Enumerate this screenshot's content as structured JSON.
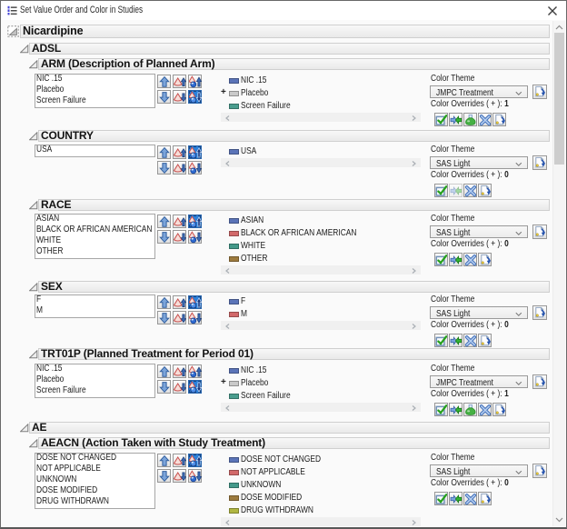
{
  "window": {
    "title": "Set Value Order and Color in Studies",
    "title_icon": "numbered-list-icon",
    "close_icon": "close-icon"
  },
  "labels": {
    "color_theme": "Color Theme",
    "color_overrides_prefix": "Color Overrides ( + ):"
  },
  "move_buttons": [
    {
      "name": "move-up-button",
      "icon": "arrow-up-icon"
    },
    {
      "name": "sort-values-up-button",
      "icon": "cone-arrow-up-icon"
    },
    {
      "name": "sort-by-count-up-button",
      "icon": "cone-sphere-arrow-up-icon"
    },
    {
      "name": "move-down-button",
      "icon": "arrow-down-icon"
    },
    {
      "name": "sort-values-down-button",
      "icon": "cone-arrow-down-icon"
    },
    {
      "name": "sort-by-count-down-button",
      "icon": "cone-sphere-arrow-down-icon"
    }
  ],
  "override_buttons": {
    "check": {
      "name": "apply-overrides-button",
      "icon": "green-check-icon"
    },
    "swap": {
      "name": "swap-colors-button",
      "icon": "green-swap-arrows-icon"
    },
    "flask": {
      "name": "extract-overrides-button",
      "icon": "green-flask-icon"
    },
    "clear": {
      "name": "clear-overrides-button",
      "icon": "blue-x-icon"
    },
    "save": {
      "name": "save-color-theme-button",
      "icon": "page-blue-arrow-icon"
    }
  },
  "edit_theme_button": {
    "name": "edit-color-theme-button",
    "icon": "page-blue-arrow-icon"
  },
  "outline": [
    {
      "id": "nicardipine",
      "level": 1,
      "title": "Nicardipine",
      "icon": "study-icon"
    },
    {
      "id": "adsl",
      "level": 2,
      "title": "ADSL",
      "icon": "disclosure-open-icon"
    },
    {
      "id": "arm",
      "level": 3,
      "title": "ARM (Description of Planned Arm)",
      "icon": "disclosure-open-icon",
      "values": [
        "NIC .15",
        "Placebo",
        "Screen Failure"
      ],
      "legend": [
        {
          "label": "NIC .15",
          "color": "#5b74b8",
          "override": false
        },
        {
          "label": "Placebo",
          "color": "#c9c9c9",
          "override": true
        },
        {
          "label": "Screen Failure",
          "color": "#4a9d8e",
          "override": false
        }
      ],
      "color_theme": "JMPC Treatment",
      "overrides_count": "1",
      "highlight": "bottom",
      "has_flask": true,
      "swap_disabled": false
    },
    {
      "id": "country",
      "level": 3,
      "title": "COUNTRY",
      "icon": "disclosure-open-icon",
      "values": [
        "USA"
      ],
      "legend": [
        {
          "label": "USA",
          "color": "#5b74b8",
          "override": false
        }
      ],
      "color_theme": "SAS Light",
      "overrides_count": "0",
      "highlight": "top",
      "has_flask": false,
      "swap_disabled": true
    },
    {
      "id": "race",
      "level": 3,
      "title": "RACE",
      "icon": "disclosure-open-icon",
      "values": [
        "ASIAN",
        "BLACK OR AFRICAN AMERICAN",
        "WHITE",
        "OTHER"
      ],
      "legend": [
        {
          "label": "ASIAN",
          "color": "#5b74b8",
          "override": false
        },
        {
          "label": "BLACK OR AFRICAN AMERICAN",
          "color": "#d2696a",
          "override": false
        },
        {
          "label": "WHITE",
          "color": "#44998a",
          "override": false
        },
        {
          "label": "OTHER",
          "color": "#9d7b3e",
          "override": false
        }
      ],
      "color_theme": "SAS Light",
      "overrides_count": "0",
      "highlight": "top",
      "has_flask": false,
      "swap_disabled": false
    },
    {
      "id": "sex",
      "level": 3,
      "title": "SEX",
      "icon": "disclosure-open-icon",
      "values": [
        "F",
        "M"
      ],
      "legend": [
        {
          "label": "F",
          "color": "#5b74b8",
          "override": false
        },
        {
          "label": "M",
          "color": "#d2696a",
          "override": false
        }
      ],
      "color_theme": "SAS Light",
      "overrides_count": "0",
      "highlight": "top",
      "has_flask": false,
      "swap_disabled": false
    },
    {
      "id": "trt01p",
      "level": 3,
      "title": "TRT01P (Planned Treatment for Period 01)",
      "icon": "disclosure-open-icon",
      "values": [
        "NIC .15",
        "Placebo",
        "Screen Failure"
      ],
      "legend": [
        {
          "label": "NIC .15",
          "color": "#5b74b8",
          "override": false
        },
        {
          "label": "Placebo",
          "color": "#c9c9c9",
          "override": true
        },
        {
          "label": "Screen Failure",
          "color": "#4a9d8e",
          "override": false
        }
      ],
      "color_theme": "JMPC Treatment",
      "overrides_count": "1",
      "highlight": "bottom",
      "has_flask": true,
      "swap_disabled": false
    },
    {
      "id": "ae",
      "level": 2,
      "title": "AE",
      "icon": "disclosure-open-icon"
    },
    {
      "id": "aeacn",
      "level": 3,
      "title": "AEACN (Action Taken with Study Treatment)",
      "icon": "disclosure-open-icon",
      "values": [
        "DOSE NOT CHANGED",
        "NOT APPLICABLE",
        "UNKNOWN",
        "DOSE MODIFIED",
        "DRUG WITHDRAWN"
      ],
      "legend": [
        {
          "label": "DOSE NOT CHANGED",
          "color": "#5b74b8",
          "override": false
        },
        {
          "label": "NOT APPLICABLE",
          "color": "#d2696a",
          "override": false
        },
        {
          "label": "UNKNOWN",
          "color": "#44998a",
          "override": false
        },
        {
          "label": "DOSE MODIFIED",
          "color": "#9d7b3e",
          "override": false
        },
        {
          "label": "DRUG WITHDRAWN",
          "color": "#b1b742",
          "override": false
        }
      ],
      "color_theme": "SAS Light",
      "overrides_count": "0",
      "highlight": "top",
      "has_flask": false,
      "swap_disabled": false
    }
  ],
  "scrollbar": {
    "orientation": "vertical",
    "up_icon": "chevron-up-icon",
    "down_icon": "chevron-down-icon"
  },
  "legend_scrollbar": {
    "left_icon": "chevron-left-icon",
    "right_icon": "chevron-right-icon"
  }
}
